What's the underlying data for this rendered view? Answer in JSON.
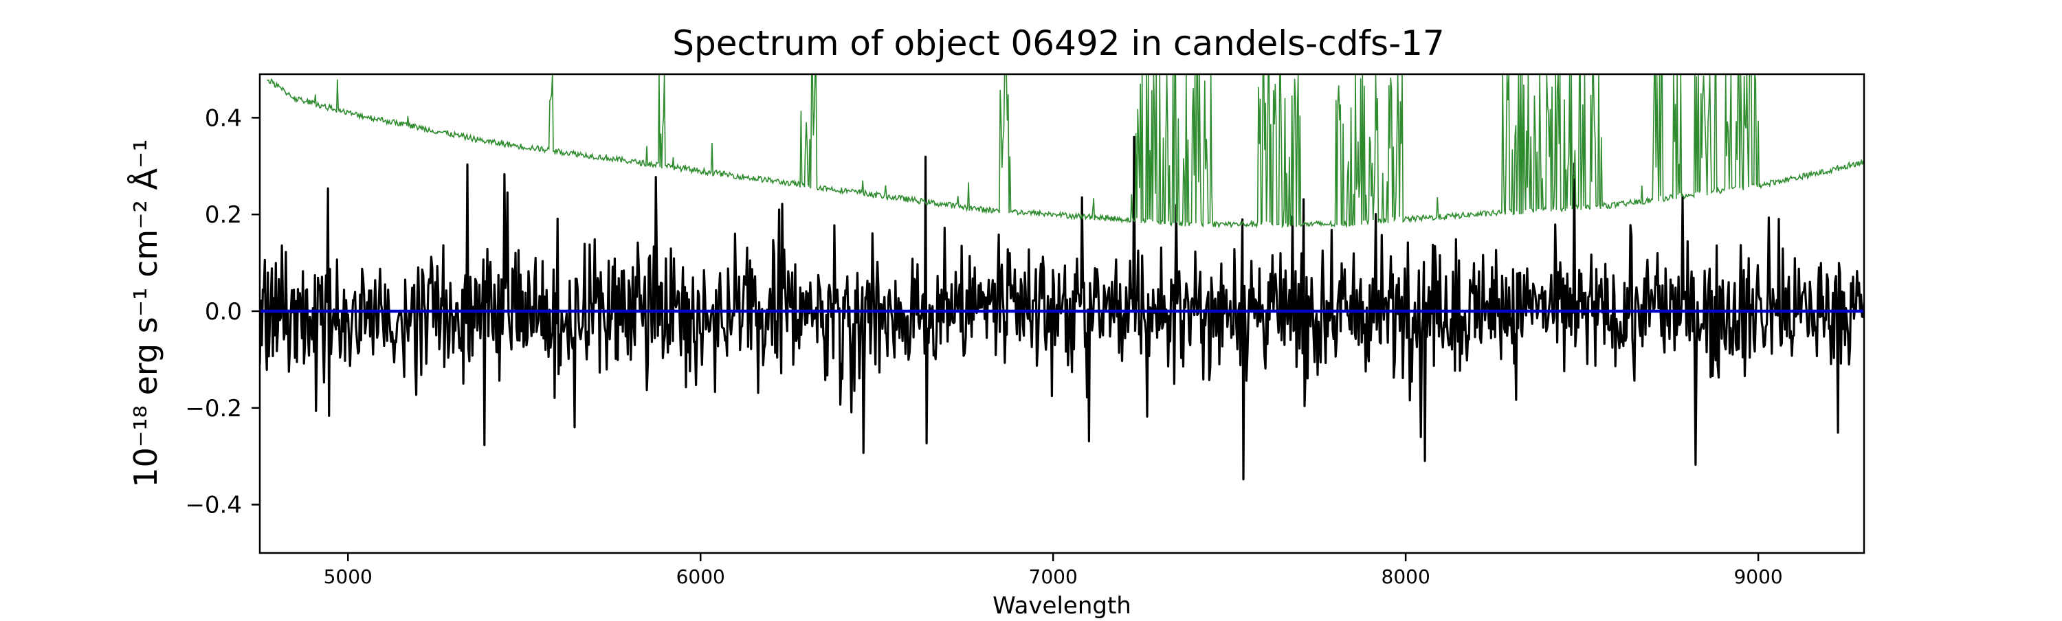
{
  "chart_data": {
    "type": "line",
    "title": "Spectrum of object 06492 in candels-cdfs-17",
    "xlabel": "Wavelength",
    "ylabel": "10⁻¹⁸ erg s⁻¹ cm⁻² Å⁻¹",
    "xlim": [
      4750,
      9300
    ],
    "ylim": [
      -0.5,
      0.49
    ],
    "xticks": [
      5000,
      6000,
      7000,
      8000,
      9000
    ],
    "yticks": [
      -0.4,
      -0.2,
      0.0,
      0.2,
      0.4
    ],
    "ytick_labels": [
      "−0.4",
      "−0.2",
      "0.0",
      "0.2",
      "0.4"
    ],
    "grid": false,
    "legend": "none",
    "series": [
      {
        "role": "flux",
        "color": "#000000",
        "kind": "noisy",
        "x_range": [
          4750,
          9300
        ],
        "n_points": 1600,
        "amplitude": 0.13,
        "range": [
          -0.45,
          0.38
        ]
      },
      {
        "role": "noise",
        "color": "#2e8b2e",
        "kind": "noise-envelope",
        "x_range": [
          4770,
          9300
        ],
        "baseline": [
          [
            4770,
            0.48
          ],
          [
            4850,
            0.44
          ],
          [
            5000,
            0.41
          ],
          [
            5200,
            0.38
          ],
          [
            5400,
            0.35
          ],
          [
            5600,
            0.33
          ],
          [
            5800,
            0.31
          ],
          [
            6000,
            0.29
          ],
          [
            6200,
            0.27
          ],
          [
            6400,
            0.25
          ],
          [
            6600,
            0.23
          ],
          [
            6800,
            0.21
          ],
          [
            7000,
            0.2
          ],
          [
            7200,
            0.19
          ],
          [
            7400,
            0.18
          ],
          [
            7600,
            0.18
          ],
          [
            7800,
            0.18
          ],
          [
            8000,
            0.19
          ],
          [
            8200,
            0.2
          ],
          [
            8400,
            0.21
          ],
          [
            8600,
            0.22
          ],
          [
            8800,
            0.24
          ],
          [
            9000,
            0.26
          ],
          [
            9200,
            0.29
          ],
          [
            9300,
            0.31
          ]
        ],
        "sky_line_bands": [
          [
            5570,
            5585
          ],
          [
            5880,
            5900
          ],
          [
            6280,
            6330
          ],
          [
            6850,
            6880
          ],
          [
            7230,
            7450
          ],
          [
            7580,
            7700
          ],
          [
            7800,
            7990
          ],
          [
            8270,
            8560
          ],
          [
            8700,
            8730
          ],
          [
            8760,
            8780
          ],
          [
            8820,
            8880
          ],
          [
            8900,
            9000
          ]
        ]
      },
      {
        "role": "model",
        "color": "#0000cc",
        "kind": "flat",
        "x_range": [
          4750,
          9300
        ],
        "value": 0.0
      }
    ]
  }
}
